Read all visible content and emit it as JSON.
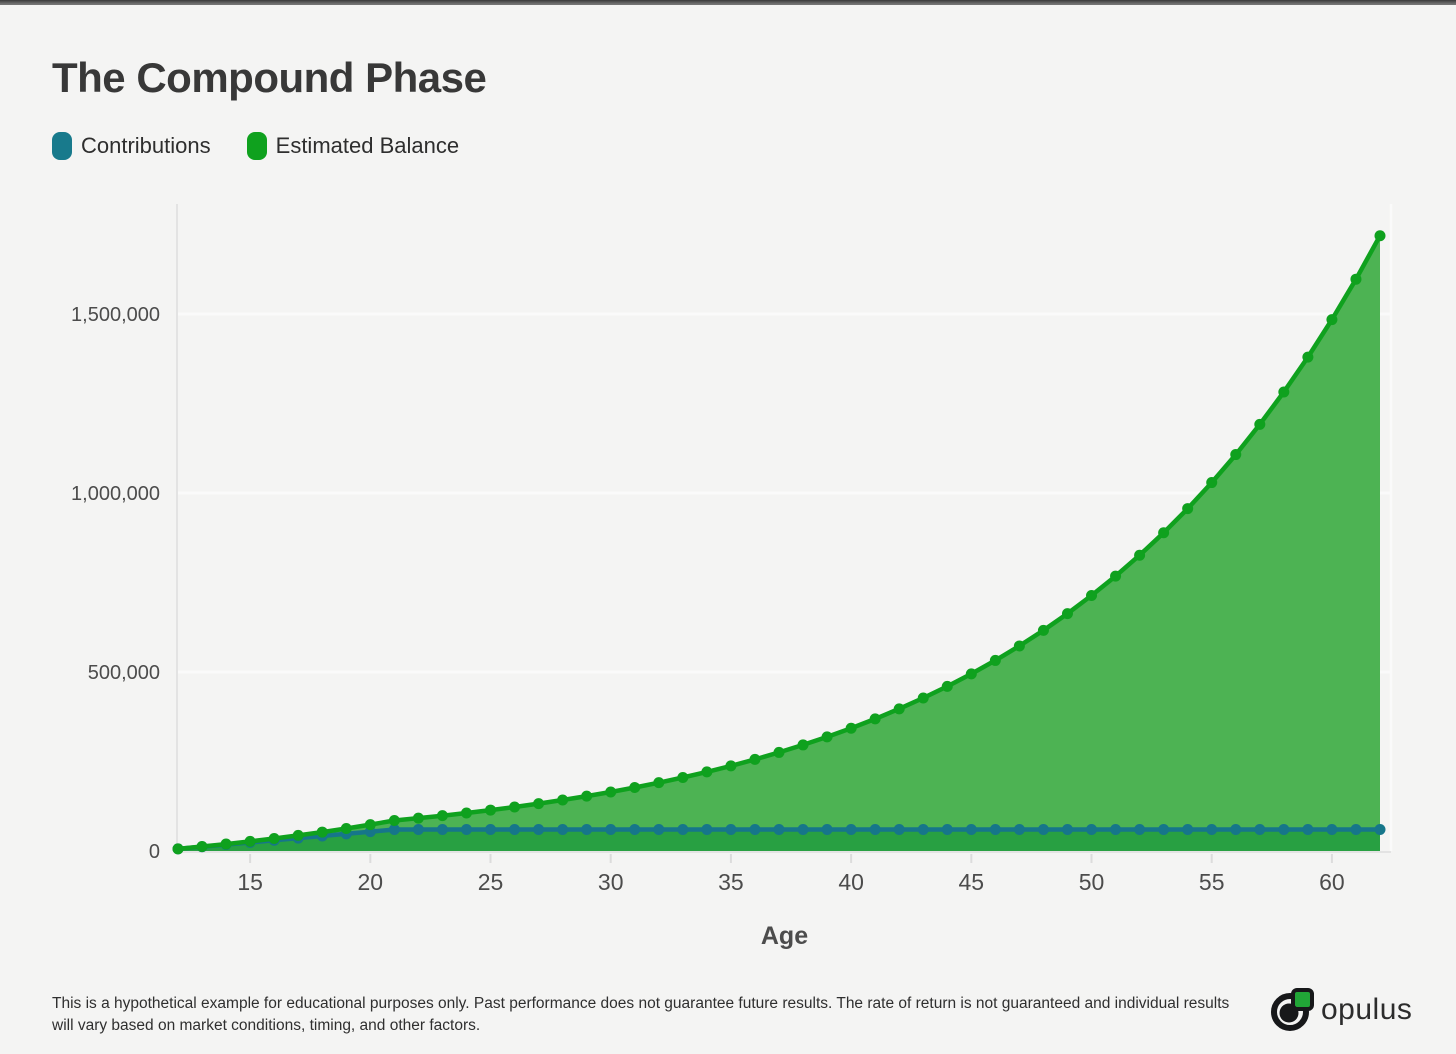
{
  "page": {
    "background": "#f4f4f3",
    "top_bar_color": "#5a5a5a"
  },
  "header": {
    "title": "The Compound Phase"
  },
  "legend": [
    {
      "label": "Contributions",
      "color": "#187a8c"
    },
    {
      "label": "Estimated Balance",
      "color": "#0fa11e"
    }
  ],
  "footer": {
    "disclaimer": "This is a hypothetical example for educational purposes only. Past performance does not guarantee future results. The rate of return is not guaranteed and individual results will vary based on market conditions, timing, and other factors.",
    "brand": "opulus",
    "brand_green": "#21a637",
    "brand_dark": "#17181a"
  },
  "chart_data": {
    "type": "area",
    "title": "The Compound Phase",
    "xlabel": "Age",
    "ylabel": "",
    "x": [
      12,
      13,
      14,
      15,
      16,
      17,
      18,
      19,
      20,
      21,
      22,
      23,
      24,
      25,
      26,
      27,
      28,
      29,
      30,
      31,
      32,
      33,
      34,
      35,
      36,
      37,
      38,
      39,
      40,
      41,
      42,
      43,
      44,
      45,
      46,
      47,
      48,
      49,
      50,
      51,
      52,
      53,
      54,
      55,
      56,
      57,
      58,
      59,
      60,
      61,
      62
    ],
    "x_ticks": [
      15,
      20,
      25,
      30,
      35,
      40,
      45,
      50,
      55,
      60
    ],
    "y_ticks": [
      0,
      500000,
      1000000,
      1500000
    ],
    "y_tick_labels": [
      "0",
      "500,000",
      "1,000,000",
      "1,500,000"
    ],
    "ylim": [
      0,
      1750000
    ],
    "xlim": [
      12,
      62
    ],
    "grid": "horizontal",
    "legend_position": "top-left",
    "series": [
      {
        "name": "Contributions",
        "line_color": "#16768a",
        "area_color": "#28a042",
        "values": [
          6000,
          12000,
          18000,
          24000,
          30000,
          36000,
          42000,
          48000,
          54000,
          60000,
          60000,
          60000,
          60000,
          60000,
          60000,
          60000,
          60000,
          60000,
          60000,
          60000,
          60000,
          60000,
          60000,
          60000,
          60000,
          60000,
          60000,
          60000,
          60000,
          60000,
          60000,
          60000,
          60000,
          60000,
          60000,
          60000,
          60000,
          60000,
          60000,
          60000,
          60000,
          60000,
          60000,
          60000,
          60000,
          60000,
          60000,
          60000,
          60000,
          60000,
          60000
        ]
      },
      {
        "name": "Estimated Balance",
        "line_color": "#0fa11e",
        "area_color": "#4db353",
        "values": [
          6000,
          12456,
          19403,
          26877,
          34920,
          43574,
          52885,
          62905,
          73686,
          85286,
          91767,
          98742,
          106246,
          114321,
          123009,
          132358,
          142417,
          153241,
          164887,
          177418,
          190902,
          205411,
          221022,
          237820,
          255894,
          275342,
          296268,
          318784,
          343012,
          369081,
          397131,
          427313,
          459789,
          494732,
          532332,
          572789,
          616321,
          663162,
          713562,
          767793,
          826145,
          888932,
          956491,
          1029184,
          1107402,
          1191565,
          1282124,
          1379565,
          1484412,
          1597227,
          1718616
        ]
      }
    ]
  }
}
